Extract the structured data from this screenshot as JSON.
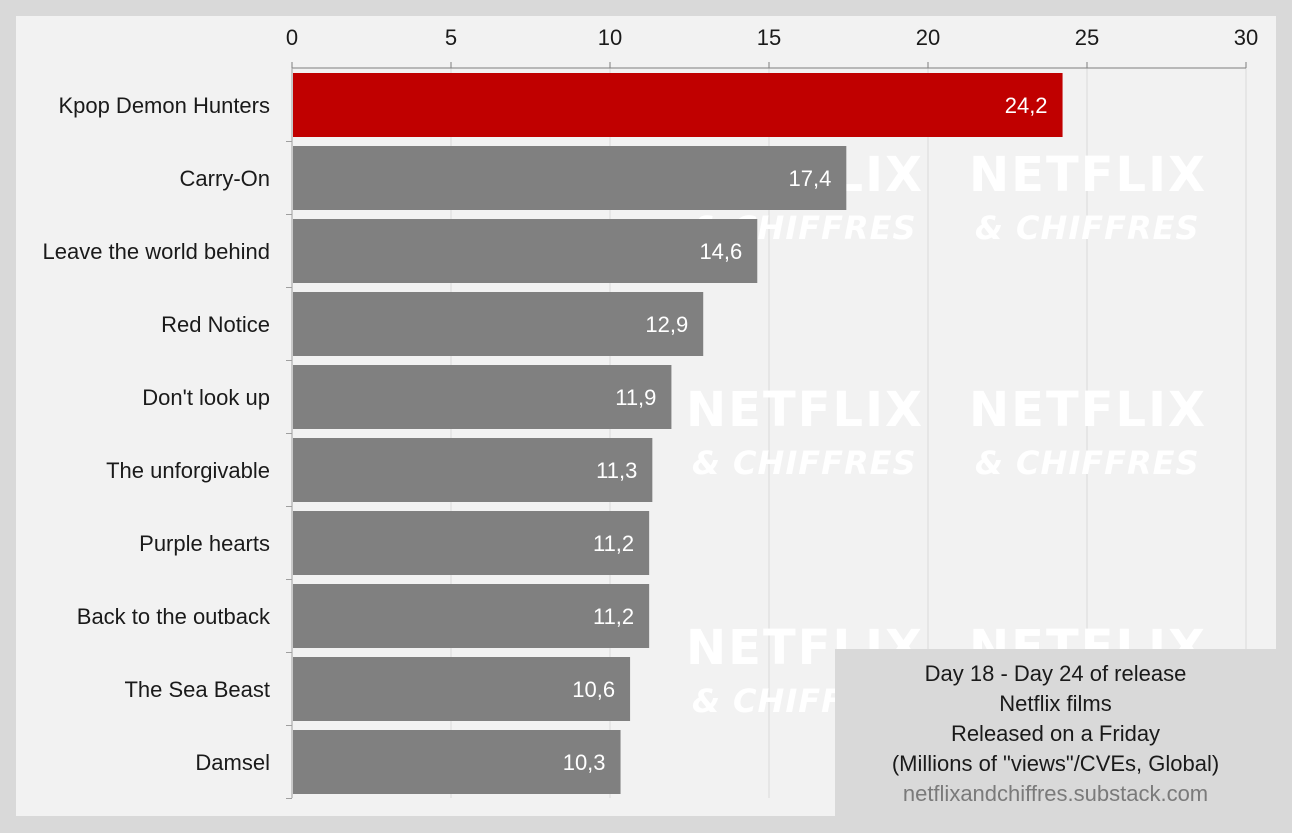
{
  "chart_data": {
    "type": "bar",
    "orientation": "horizontal",
    "categories": [
      "Kpop Demon Hunters",
      "Carry-On",
      "Leave the world behind",
      "Red Notice",
      "Don't look up",
      "The unforgivable",
      "Purple hearts",
      "Back to the outback",
      "The Sea Beast",
      "Damsel"
    ],
    "values": [
      24.2,
      17.4,
      14.6,
      12.9,
      11.9,
      11.3,
      11.2,
      11.2,
      10.6,
      10.3
    ],
    "value_labels": [
      "24,2",
      "17,4",
      "14,6",
      "12,9",
      "11,9",
      "11,3",
      "11,2",
      "11,2",
      "10,6",
      "10,3"
    ],
    "xticks": [
      0,
      5,
      10,
      15,
      20,
      25,
      30
    ],
    "xlim": [
      0,
      30
    ],
    "xaxis_position": "top",
    "grid": true,
    "colors": {
      "highlight": "#c00000",
      "default": "#808080",
      "background": "#f2f2f2",
      "gridline": "#d9d9d9"
    },
    "highlight_index": 0
  },
  "watermark": {
    "main": "NETFLIX",
    "sub": "& CHIFFRES"
  },
  "info_box": {
    "line1": "Day 18 - Day 24 of release",
    "line2": "Netflix films",
    "line3": "Released on a Friday",
    "line4": "(Millions of \"views\"/CVEs, Global)",
    "source": "netflixandchiffres.substack.com"
  }
}
